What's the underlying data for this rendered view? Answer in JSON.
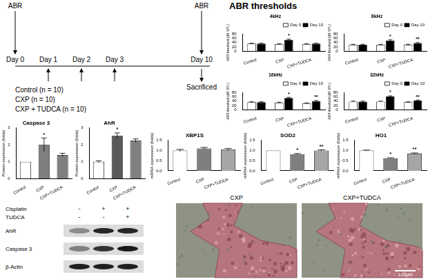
{
  "timeline": {
    "days": [
      "Day 0",
      "Day 1",
      "Day 2",
      "Day 3",
      "Day 10"
    ],
    "top_labels": [
      {
        "text": "ABR",
        "day": "Day 0"
      },
      {
        "text": "ABR",
        "day": "Day 10"
      }
    ],
    "bottom_label": {
      "text": "Sacrificed",
      "day": "Day 10"
    },
    "groups": [
      "Control (n = 10)",
      "CXP (n = 10)",
      "CXP + TUDCA (n = 10)"
    ]
  },
  "abr_panel": {
    "title": "ABR thresholds"
  },
  "chart_data": [
    {
      "type": "bar",
      "title": "4kHz",
      "categories": [
        "Control",
        "CXP",
        "CXP+TUDCA"
      ],
      "y_label": "ABR threshold (dB SPL)",
      "ylim": [
        0,
        80
      ],
      "yticks": [
        0,
        20,
        40,
        60,
        80
      ],
      "grid": false,
      "legend": "top right",
      "series": [
        {
          "name": "Day 0",
          "color": "#ffffff",
          "values": [
            35,
            33,
            33
          ],
          "errors": [
            2,
            2,
            2
          ]
        },
        {
          "name": "Day 10",
          "color": "#000000",
          "values": [
            35,
            53,
            35
          ],
          "errors": [
            2,
            3,
            2
          ],
          "annotations": [
            null,
            "*",
            null
          ]
        }
      ]
    },
    {
      "type": "bar",
      "title": "8kHz",
      "categories": [
        "Control",
        "CXP",
        "CXP+TUDCA"
      ],
      "y_label": "ABR threshold (dB SPL)",
      "ylim": [
        0,
        80
      ],
      "yticks": [
        0,
        20,
        40,
        60,
        80
      ],
      "grid": false,
      "legend": "top right",
      "series": [
        {
          "name": "Day 0",
          "color": "#ffffff",
          "values": [
            30,
            30,
            30
          ],
          "errors": [
            2,
            2,
            2
          ]
        },
        {
          "name": "Day 10",
          "color": "#000000",
          "values": [
            30,
            50,
            38
          ],
          "errors": [
            2,
            3,
            2
          ],
          "annotations": [
            null,
            "*",
            "**"
          ]
        }
      ]
    },
    {
      "type": "bar",
      "title": "16kHz",
      "categories": [
        "Control",
        "CXP",
        "CXP+TUDCA"
      ],
      "y_label": "ABR threshold (dB SPL)",
      "ylim": [
        0,
        80
      ],
      "yticks": [
        0,
        20,
        40,
        60,
        80
      ],
      "grid": false,
      "legend": "top right",
      "series": [
        {
          "name": "Day 0",
          "color": "#ffffff",
          "values": [
            35,
            33,
            30
          ],
          "errors": [
            2,
            2,
            2
          ]
        },
        {
          "name": "Day 10",
          "color": "#000000",
          "values": [
            35,
            55,
            40
          ],
          "errors": [
            2,
            3,
            3
          ],
          "annotations": [
            null,
            "*",
            "**"
          ]
        }
      ]
    },
    {
      "type": "bar",
      "title": "32kHz",
      "categories": [
        "Control",
        "CXP",
        "CXP+TUDCA"
      ],
      "y_label": "ABR threshold (dB SPL)",
      "ylim": [
        0,
        80
      ],
      "yticks": [
        0,
        20,
        40,
        60,
        80
      ],
      "grid": false,
      "legend": "top right",
      "series": [
        {
          "name": "Day 0",
          "color": "#ffffff",
          "values": [
            38,
            38,
            35
          ],
          "errors": [
            2,
            2,
            2
          ]
        },
        {
          "name": "Day 10",
          "color": "#000000",
          "values": [
            38,
            62,
            43
          ],
          "errors": [
            2,
            3,
            2
          ],
          "annotations": [
            null,
            "*",
            "**"
          ]
        }
      ]
    },
    {
      "type": "bar",
      "title": "Caspase 3",
      "categories": [
        "Control",
        "CXP",
        "CXP+TUDCA"
      ],
      "y_label": "Protein expression (folds)",
      "ylim": [
        0,
        3
      ],
      "yticks": [
        0,
        1,
        2,
        3
      ],
      "grid": false,
      "values": [
        1,
        2,
        1.4
      ],
      "errors": [
        0,
        0.4,
        0.1
      ],
      "annotations": [
        null,
        "*",
        null
      ],
      "colors": [
        "#ffffff",
        "#7f7f7f",
        "#7f7f7f"
      ]
    },
    {
      "type": "bar",
      "title": "AhR",
      "categories": [
        "Control",
        "CXP",
        "CXP+TUDCA"
      ],
      "y_label": "Protein expression (folds)",
      "ylim": [
        0,
        3
      ],
      "yticks": [
        0,
        1,
        2,
        3
      ],
      "grid": false,
      "values": [
        1,
        2.55,
        2.25
      ],
      "errors": [
        0.05,
        0.15,
        0.1
      ],
      "annotations": [
        null,
        "*",
        null
      ],
      "colors": [
        "#ffffff",
        "#595959",
        "#7f7f7f"
      ]
    },
    {
      "type": "bar",
      "title": "XBP1S",
      "categories": [
        "Control",
        "CXP",
        "CXP+TUDCA"
      ],
      "y_label": "mRNA expression (folds)",
      "ylim": [
        0,
        1.5
      ],
      "yticks": [
        {
          "value": 0,
          "label": "0.0"
        },
        0.5,
        {
          "value": 1,
          "label": "1.0"
        },
        1.5
      ],
      "grid": false,
      "values": [
        1,
        1.1,
        1.05
      ],
      "errors": [
        0.05,
        0.05,
        0.05
      ],
      "colors": [
        "#ffffff",
        "#7f7f7f",
        "#a6a6a6"
      ]
    },
    {
      "type": "bar",
      "title": "SOD2",
      "categories": [
        "Control",
        "CXP",
        "CXP+TUDCA"
      ],
      "y_label": "mRNA expression (folds)",
      "ylim": [
        0,
        1.5
      ],
      "yticks": [
        {
          "value": 0,
          "label": "0.0"
        },
        0.5,
        {
          "value": 1,
          "label": "1.0"
        },
        1.5
      ],
      "grid": false,
      "values": [
        1,
        0.82,
        1
      ],
      "errors": [
        0,
        0.03,
        0.03
      ],
      "annotations": [
        null,
        "*",
        "**"
      ],
      "colors": [
        "#ffffff",
        "#7f7f7f",
        "#a6a6a6"
      ]
    },
    {
      "type": "bar",
      "title": "HO1",
      "categories": [
        "Control",
        "CXP",
        "CXP+TUDCA"
      ],
      "y_label": "mRNA expression (folds)",
      "ylim": [
        0,
        1.5
      ],
      "yticks": [
        {
          "value": 0,
          "label": "0.0"
        },
        0.5,
        {
          "value": 1,
          "label": "1.0"
        },
        1.5
      ],
      "grid": false,
      "values": [
        1,
        0.62,
        0.85
      ],
      "errors": [
        0.02,
        0.02,
        0.03
      ],
      "annotations": [
        null,
        "*",
        "**"
      ],
      "colors": [
        "#ffffff",
        "#7f7f7f",
        "#a6a6a6"
      ]
    }
  ],
  "blot": {
    "conditions": [
      {
        "label": "Cisplatin",
        "marks": [
          "-",
          "+",
          "+"
        ]
      },
      {
        "label": "TUDCA",
        "marks": [
          "-",
          "-",
          "+"
        ]
      }
    ],
    "bands": [
      "AhR",
      "Caspase 3",
      "β-Actin"
    ]
  },
  "histology": {
    "panels": [
      "CXP",
      "CXP+TUDCA"
    ],
    "scale_bar": "100μm"
  }
}
